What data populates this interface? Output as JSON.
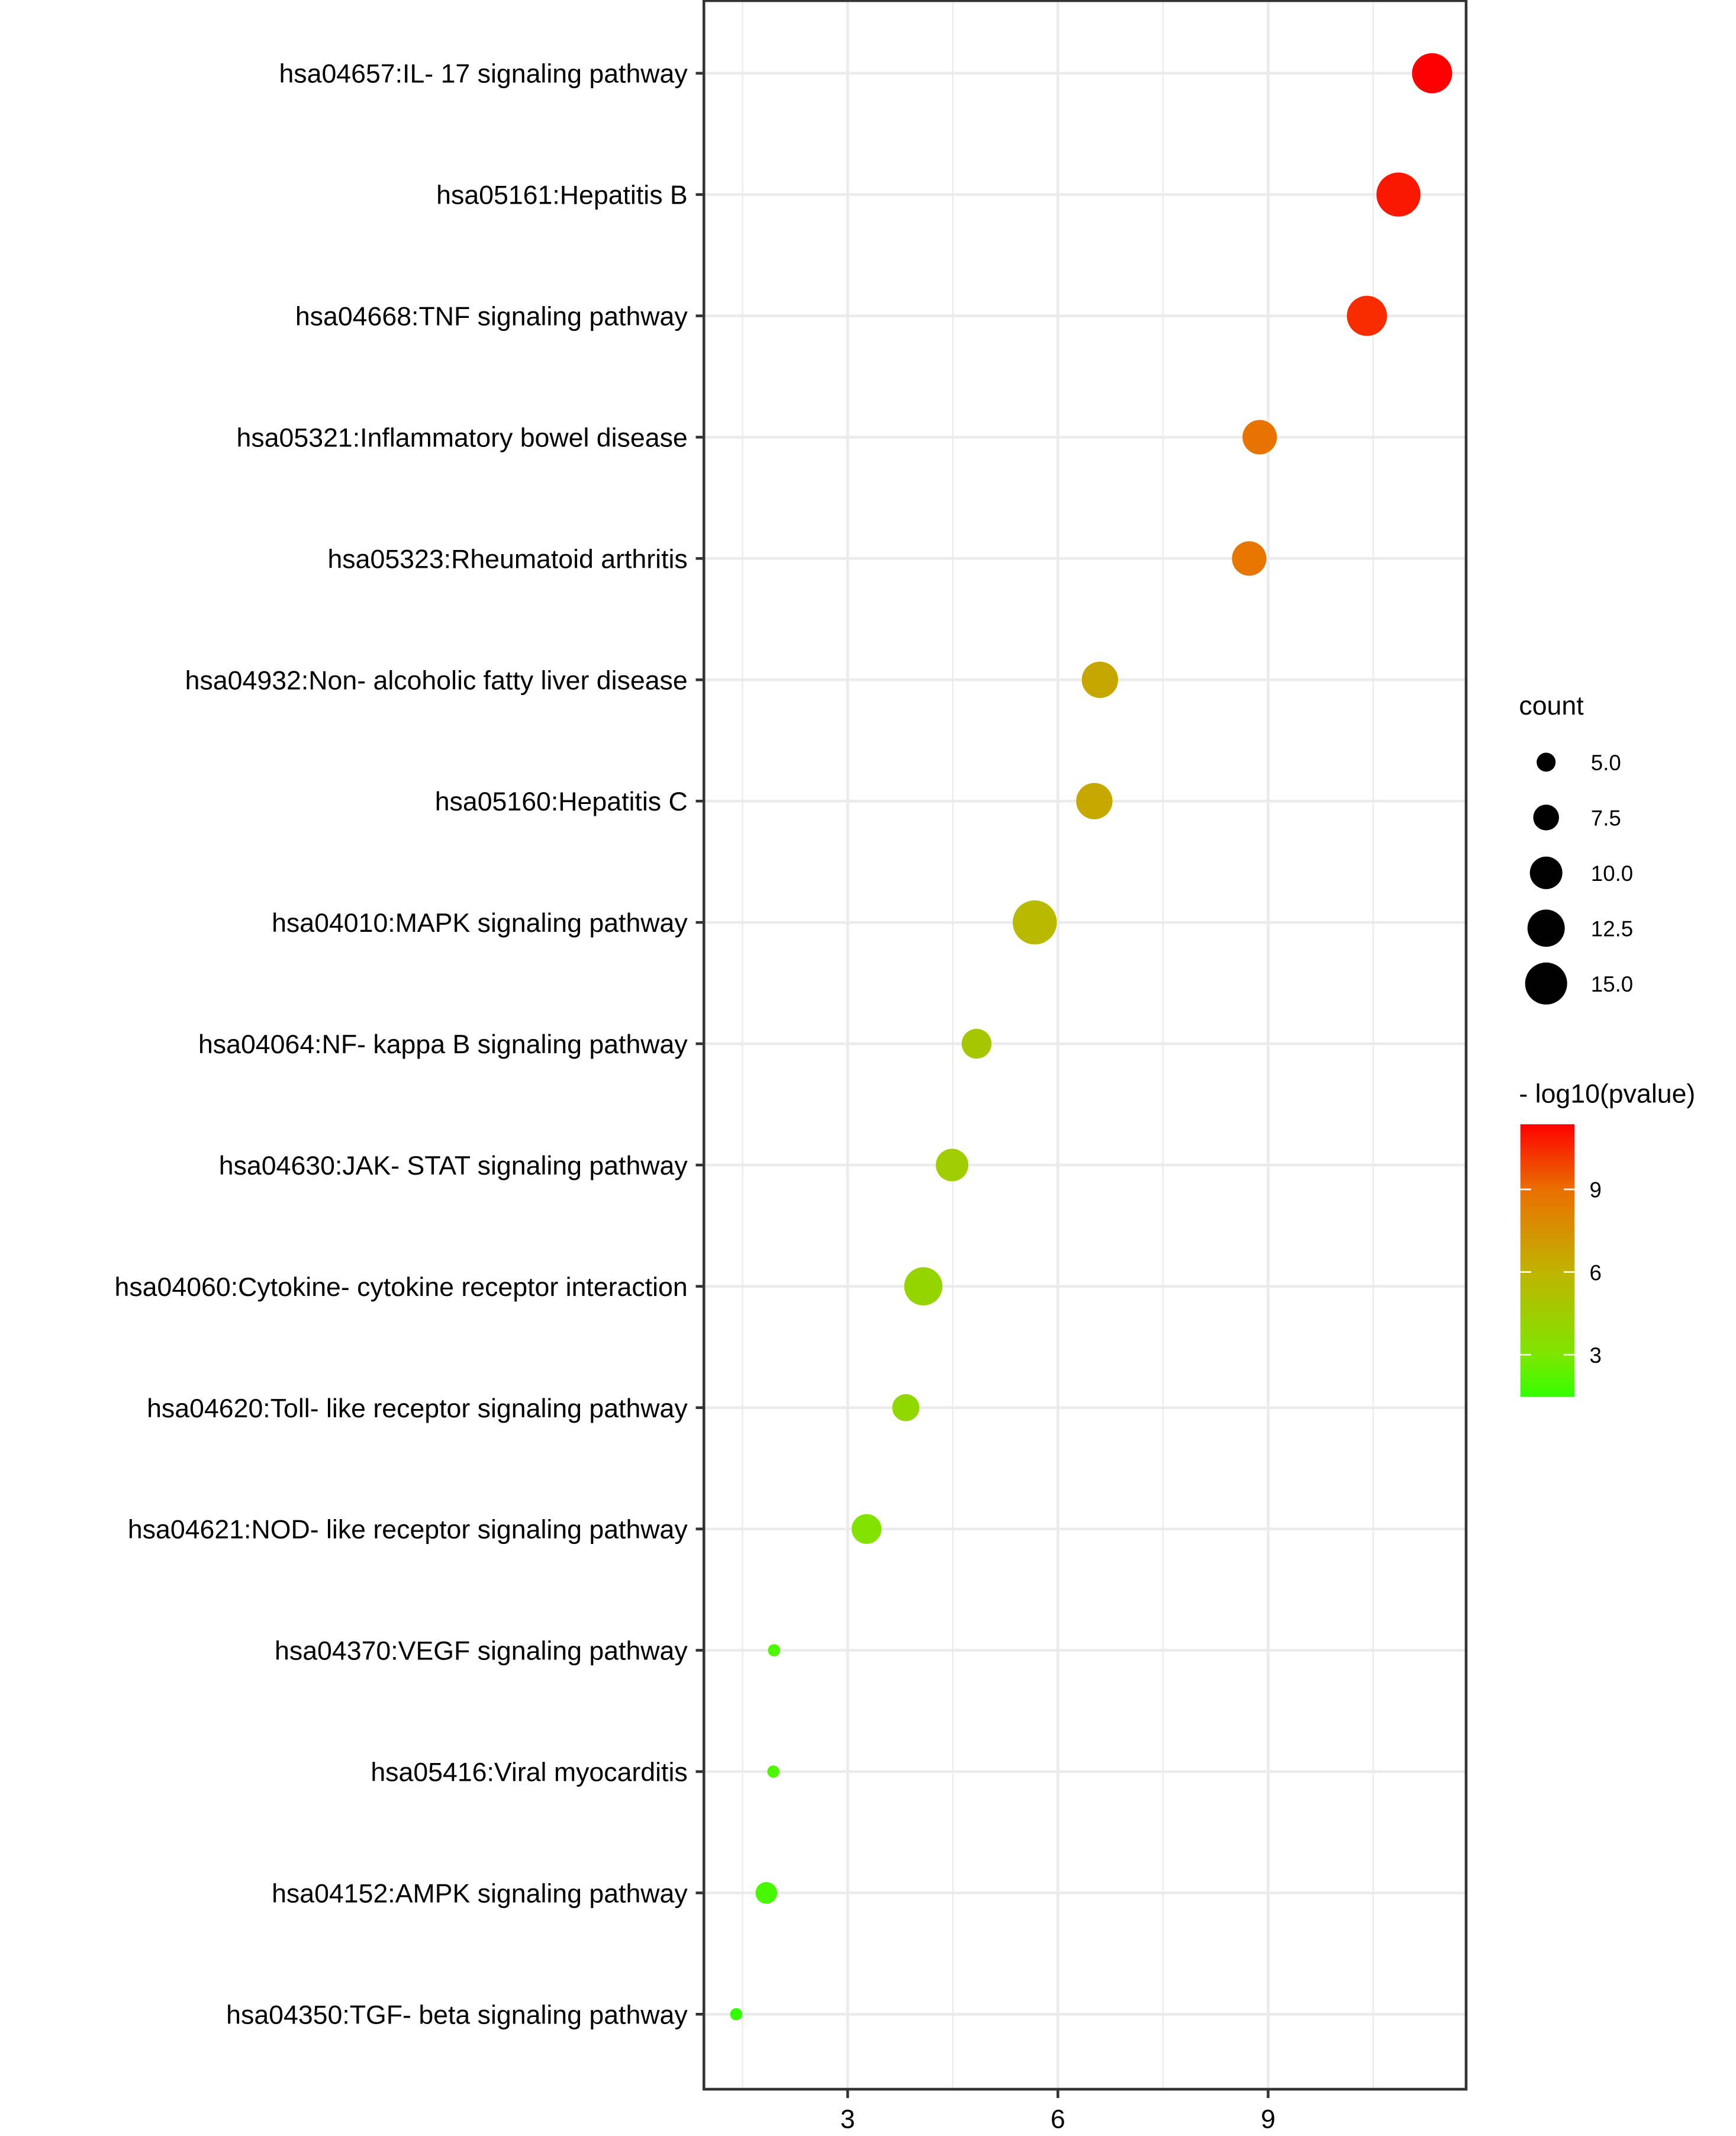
{
  "chart_data": {
    "type": "scatter",
    "subtype": "bubble (KEGG pathway enrichment dot plot)",
    "title": "",
    "xlabel": "",
    "ylabel": "",
    "xlim": [
      0.95,
      11.82
    ],
    "x_ticks": [
      3,
      6,
      9
    ],
    "x_tick_labels": [
      "3",
      "6",
      "9"
    ],
    "grid": true,
    "categories": [
      "hsa04657:IL- 17 signaling pathway",
      "hsa05161:Hepatitis B",
      "hsa04668:TNF signaling pathway",
      "hsa05321:Inflammatory bowel disease",
      "hsa05323:Rheumatoid arthritis",
      "hsa04932:Non- alcoholic fatty liver disease",
      "hsa05160:Hepatitis C",
      "hsa04010:MAPK signaling pathway",
      "hsa04064:NF- kappa B signaling pathway",
      "hsa04630:JAK- STAT signaling pathway",
      "hsa04060:Cytokine- cytokine receptor interaction",
      "hsa04620:Toll- like receptor signaling pathway",
      "hsa04621:NOD- like receptor signaling pathway",
      "hsa04370:VEGF signaling pathway",
      "hsa05416:Viral myocarditis",
      "hsa04152:AMPK signaling pathway",
      "hsa04350:TGF- beta signaling pathway"
    ],
    "points": [
      {
        "pathway": "hsa04657:IL- 17 signaling pathway",
        "x": 11.34,
        "neg_log10_pvalue": 11.34,
        "count": 14
      },
      {
        "pathway": "hsa05161:Hepatitis B",
        "x": 10.86,
        "neg_log10_pvalue": 10.86,
        "count": 16
      },
      {
        "pathway": "hsa04668:TNF signaling pathway",
        "x": 10.41,
        "neg_log10_pvalue": 10.41,
        "count": 14
      },
      {
        "pathway": "hsa05321:Inflammatory bowel disease",
        "x": 8.88,
        "neg_log10_pvalue": 8.88,
        "count": 11
      },
      {
        "pathway": "hsa05323:Rheumatoid arthritis",
        "x": 8.73,
        "neg_log10_pvalue": 8.73,
        "count": 11
      },
      {
        "pathway": "hsa04932:Non- alcoholic fatty liver disease",
        "x": 6.6,
        "neg_log10_pvalue": 6.6,
        "count": 12
      },
      {
        "pathway": "hsa05160:Hepatitis C",
        "x": 6.52,
        "neg_log10_pvalue": 6.52,
        "count": 12
      },
      {
        "pathway": "hsa04010:MAPK signaling pathway",
        "x": 5.67,
        "neg_log10_pvalue": 5.67,
        "count": 16
      },
      {
        "pathway": "hsa04064:NF- kappa B signaling pathway",
        "x": 4.84,
        "neg_log10_pvalue": 4.84,
        "count": 9
      },
      {
        "pathway": "hsa04630:JAK- STAT signaling pathway",
        "x": 4.49,
        "neg_log10_pvalue": 4.49,
        "count": 10
      },
      {
        "pathway": "hsa04060:Cytokine- cytokine receptor interaction",
        "x": 4.08,
        "neg_log10_pvalue": 4.08,
        "count": 13
      },
      {
        "pathway": "hsa04620:Toll- like receptor signaling pathway",
        "x": 3.83,
        "neg_log10_pvalue": 3.83,
        "count": 8
      },
      {
        "pathway": "hsa04621:NOD- like receptor signaling pathway",
        "x": 3.27,
        "neg_log10_pvalue": 3.27,
        "count": 9
      },
      {
        "pathway": "hsa04370:VEGF signaling pathway",
        "x": 1.95,
        "neg_log10_pvalue": 1.95,
        "count": 3
      },
      {
        "pathway": "hsa05416:Viral myocarditis",
        "x": 1.94,
        "neg_log10_pvalue": 1.94,
        "count": 3
      },
      {
        "pathway": "hsa04152:AMPK signaling pathway",
        "x": 1.84,
        "neg_log10_pvalue": 1.84,
        "count": 6
      },
      {
        "pathway": "hsa04350:TGF- beta signaling pathway",
        "x": 1.41,
        "neg_log10_pvalue": 1.41,
        "count": 3
      }
    ],
    "legend_size": {
      "title": "count",
      "values": [
        5.0,
        7.5,
        10.0,
        12.5,
        15.0
      ],
      "labels": [
        "5.0",
        "7.5",
        "10.0",
        "12.5",
        "15.0"
      ],
      "placement": "right"
    },
    "legend_color": {
      "title": "- log10(pvalue)",
      "range": [
        1.41,
        11.34
      ],
      "ticks": [
        9,
        6,
        3
      ],
      "tick_labels": [
        "9",
        "6",
        "3"
      ],
      "low_color": "#33FF00",
      "high_color": "#FF0000",
      "placement": "right"
    }
  }
}
